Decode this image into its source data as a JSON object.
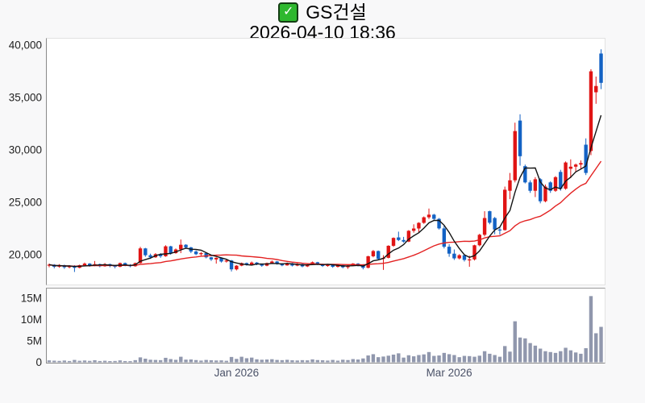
{
  "title": {
    "check_glyph": "✓",
    "symbol": "GS건설",
    "datetime": "2026-04-10 18:36"
  },
  "colors": {
    "up_candle": "#e01414",
    "down_candle": "#1362c4",
    "volume_bar": "#9097ad",
    "ma_short_line": "#141414",
    "ma_long_line": "#e32222",
    "check_green": "#2eb82e",
    "axis_line": "#8a8a8a",
    "tick_text": "#222222",
    "date_text": "#4b5268",
    "background": "#f8f8f9",
    "plot_background": "#ffffff"
  },
  "chart_data": {
    "type": "candlestick",
    "title": "GS건설",
    "subtitle": "2026-04-10 18:36",
    "legend_position": "none",
    "grid": false,
    "price_axis": {
      "min": 17100,
      "max": 40400,
      "ticks": [
        {
          "value": 40000,
          "label": "40,000"
        },
        {
          "value": 35000,
          "label": "35,000"
        },
        {
          "value": 30000,
          "label": "30,000"
        },
        {
          "value": 25000,
          "label": "25,000"
        },
        {
          "value": 20000,
          "label": "20,000"
        }
      ]
    },
    "volume_axis": {
      "min": 0,
      "max": 17.5,
      "unit": "millions of shares",
      "ticks": [
        {
          "value": 15,
          "label": "15M"
        },
        {
          "value": 10,
          "label": "10M"
        },
        {
          "value": 5,
          "label": "5M"
        },
        {
          "value": 0,
          "label": "0"
        }
      ]
    },
    "time_axis": {
      "ticks": [
        {
          "index": 37,
          "label": "Jan 2026"
        },
        {
          "index": 79,
          "label": "Mar 2026"
        }
      ]
    },
    "ma_periods": {
      "short": 5,
      "long": 20
    },
    "ohlcv": [
      [
        18950,
        19150,
        18800,
        19050,
        0.45
      ],
      [
        19050,
        19100,
        18700,
        18850,
        0.38
      ],
      [
        18850,
        19100,
        18750,
        19000,
        0.32
      ],
      [
        19000,
        19050,
        18650,
        18800,
        0.41
      ],
      [
        18800,
        19000,
        18700,
        18950,
        0.3
      ],
      [
        18950,
        19000,
        18350,
        18750,
        0.55
      ],
      [
        18750,
        19050,
        18700,
        19000,
        0.35
      ],
      [
        19000,
        19250,
        18950,
        19150,
        0.42
      ],
      [
        19150,
        19200,
        18850,
        18950,
        0.33
      ],
      [
        18950,
        19400,
        18900,
        19100,
        0.48
      ],
      [
        19100,
        19150,
        18800,
        18900,
        0.3
      ],
      [
        18900,
        19200,
        18850,
        19100,
        0.36
      ],
      [
        19100,
        19150,
        18800,
        18950,
        0.28
      ],
      [
        18950,
        19000,
        18700,
        18850,
        0.31
      ],
      [
        18850,
        19250,
        18800,
        19200,
        0.44
      ],
      [
        19200,
        19250,
        18900,
        19000,
        0.29
      ],
      [
        19000,
        19100,
        18800,
        18900,
        0.27
      ],
      [
        18900,
        19250,
        18850,
        19200,
        0.5
      ],
      [
        19200,
        20750,
        19150,
        20600,
        1.15
      ],
      [
        20600,
        20650,
        19800,
        19950,
        0.85
      ],
      [
        19950,
        20100,
        19600,
        19750,
        0.6
      ],
      [
        19750,
        20150,
        19700,
        20050,
        0.55
      ],
      [
        20050,
        20150,
        19700,
        19850,
        0.5
      ],
      [
        19850,
        20900,
        19800,
        20800,
        1.05
      ],
      [
        20800,
        20850,
        20000,
        20150,
        0.75
      ],
      [
        20150,
        20600,
        20100,
        20500,
        0.58
      ],
      [
        20500,
        21450,
        20150,
        20950,
        1.3
      ],
      [
        20950,
        21000,
        20550,
        20700,
        0.62
      ],
      [
        20700,
        20750,
        20150,
        20300,
        0.66
      ],
      [
        20300,
        20400,
        19950,
        20050,
        0.52
      ],
      [
        20050,
        20250,
        19900,
        20150,
        0.4
      ],
      [
        20150,
        20200,
        19650,
        19750,
        0.55
      ],
      [
        19750,
        19800,
        19400,
        19550,
        0.48
      ],
      [
        19550,
        19750,
        19150,
        19700,
        0.42
      ],
      [
        19700,
        19750,
        19250,
        19350,
        0.45
      ],
      [
        19350,
        19550,
        19250,
        19450,
        0.35
      ],
      [
        19450,
        19500,
        18400,
        18600,
        1.25
      ],
      [
        18600,
        19000,
        18500,
        18950,
        0.8
      ],
      [
        18950,
        19250,
        18900,
        19200,
        1.3
      ],
      [
        19200,
        19250,
        18950,
        19050,
        0.95
      ],
      [
        19050,
        19350,
        19000,
        19250,
        1.1
      ],
      [
        19250,
        19300,
        19000,
        19100,
        0.7
      ],
      [
        19100,
        19150,
        18850,
        18950,
        0.6
      ],
      [
        18950,
        19250,
        18900,
        19200,
        0.65
      ],
      [
        19200,
        19450,
        19150,
        19350,
        0.72
      ],
      [
        19350,
        19400,
        19050,
        19150,
        0.55
      ],
      [
        19150,
        19200,
        18900,
        18980,
        0.5
      ],
      [
        18980,
        19250,
        18950,
        19180,
        0.58
      ],
      [
        19180,
        19220,
        18880,
        18960,
        0.47
      ],
      [
        18960,
        19180,
        18900,
        19100,
        0.42
      ],
      [
        19100,
        19150,
        18800,
        18880,
        0.5
      ],
      [
        18880,
        19100,
        18820,
        19050,
        0.45
      ],
      [
        19050,
        19350,
        19000,
        19280,
        0.68
      ],
      [
        19280,
        19320,
        19020,
        19100,
        0.52
      ],
      [
        19100,
        19150,
        18830,
        18920,
        0.48
      ],
      [
        18920,
        19120,
        18850,
        19060,
        0.4
      ],
      [
        19060,
        19100,
        18750,
        18840,
        0.55
      ],
      [
        18840,
        19060,
        18780,
        19000,
        0.38
      ],
      [
        19000,
        19080,
        18700,
        18800,
        0.6
      ],
      [
        18800,
        19000,
        18650,
        18950,
        0.52
      ],
      [
        18950,
        19200,
        18900,
        19150,
        0.75
      ],
      [
        19150,
        19200,
        18880,
        18980,
        0.65
      ],
      [
        18980,
        19100,
        18600,
        18750,
        0.9
      ],
      [
        18750,
        19900,
        18700,
        19850,
        1.6
      ],
      [
        19850,
        20450,
        19750,
        20350,
        1.9
      ],
      [
        20350,
        20400,
        19500,
        19600,
        1.2
      ],
      [
        19600,
        19950,
        18550,
        19700,
        1.35
      ],
      [
        19700,
        20900,
        19650,
        20850,
        1.55
      ],
      [
        20850,
        21650,
        20750,
        21600,
        1.8
      ],
      [
        21650,
        22200,
        21300,
        21400,
        2.1
      ],
      [
        21400,
        21700,
        21150,
        21250,
        1.1
      ],
      [
        21250,
        22350,
        21200,
        22280,
        1.65
      ],
      [
        22280,
        22900,
        22100,
        22500,
        1.4
      ],
      [
        22500,
        23100,
        22050,
        23040,
        1.7
      ],
      [
        23040,
        23650,
        22950,
        23570,
        1.85
      ],
      [
        23570,
        24400,
        23400,
        23820,
        2.4
      ],
      [
        23820,
        23900,
        23300,
        23420,
        1.5
      ],
      [
        23420,
        23500,
        22400,
        22510,
        1.6
      ],
      [
        22510,
        22850,
        20600,
        20760,
        2.2
      ],
      [
        20760,
        21000,
        19800,
        20100,
        1.9
      ],
      [
        20100,
        20500,
        19500,
        19650,
        1.7
      ],
      [
        19650,
        20050,
        19550,
        19950,
        1.2
      ],
      [
        19950,
        20000,
        19350,
        19500,
        1.5
      ],
      [
        19500,
        19900,
        18850,
        19550,
        1.45
      ],
      [
        19550,
        20950,
        19450,
        20900,
        1.3
      ],
      [
        20900,
        22000,
        20800,
        21900,
        1.55
      ],
      [
        21900,
        24150,
        21750,
        23500,
        2.6
      ],
      [
        24150,
        24200,
        22900,
        23050,
        2.0
      ],
      [
        23500,
        23600,
        21950,
        22400,
        1.7
      ],
      [
        22400,
        22600,
        21900,
        22350,
        1.3
      ],
      [
        22350,
        26500,
        22300,
        26200,
        3.8
      ],
      [
        26100,
        27800,
        25300,
        27100,
        2.5
      ],
      [
        27100,
        32600,
        26900,
        31800,
        9.6
      ],
      [
        32800,
        33400,
        28500,
        29400,
        5.8
      ],
      [
        28450,
        28600,
        26800,
        26900,
        5.6
      ],
      [
        26900,
        27100,
        25900,
        26100,
        4.5
      ],
      [
        26100,
        27400,
        25500,
        27200,
        3.9
      ],
      [
        27200,
        27300,
        24900,
        25100,
        3.2
      ],
      [
        25100,
        26700,
        25000,
        26500,
        2.6
      ],
      [
        26900,
        27000,
        25900,
        26100,
        2.4
      ],
      [
        26100,
        27500,
        26000,
        27400,
        2.2
      ],
      [
        27900,
        28100,
        26100,
        26300,
        2.6
      ],
      [
        26300,
        28900,
        26200,
        28800,
        3.4
      ],
      [
        28200,
        29100,
        27300,
        28400,
        2.8
      ],
      [
        28400,
        28700,
        27900,
        28600,
        2.3
      ],
      [
        28600,
        29000,
        28200,
        28750,
        2.0
      ],
      [
        30500,
        31100,
        27600,
        27800,
        3.3
      ],
      [
        29900,
        37700,
        29500,
        37500,
        15.5
      ],
      [
        35500,
        37000,
        34400,
        36100,
        6.8
      ],
      [
        39200,
        39600,
        35800,
        36400,
        8.3
      ]
    ]
  }
}
